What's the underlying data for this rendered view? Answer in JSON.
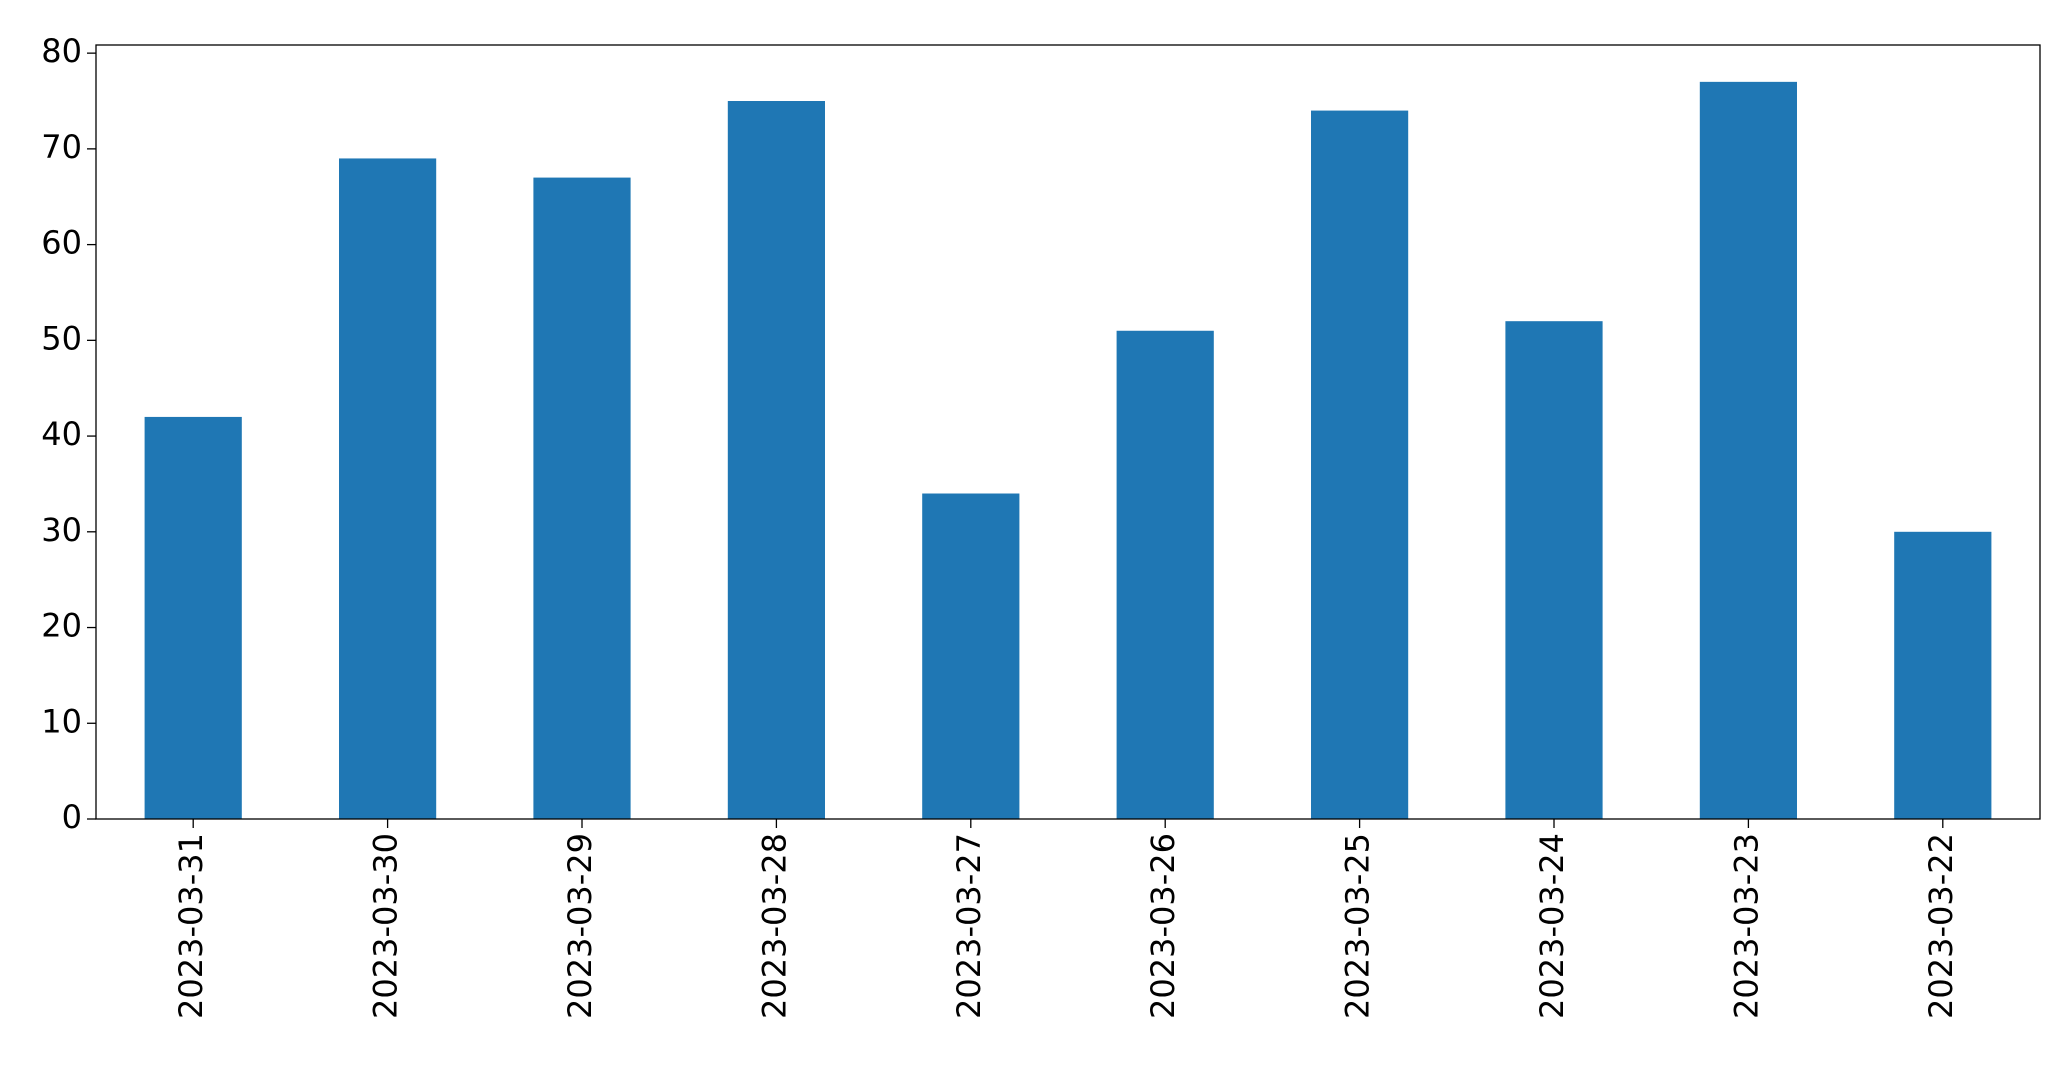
{
  "chart_data": {
    "type": "bar",
    "categories": [
      "2023-03-31",
      "2023-03-30",
      "2023-03-29",
      "2023-03-28",
      "2023-03-27",
      "2023-03-26",
      "2023-03-25",
      "2023-03-24",
      "2023-03-23",
      "2023-03-22"
    ],
    "values": [
      42,
      69,
      67,
      75,
      34,
      51,
      74,
      52,
      77,
      30
    ],
    "color": "#1f77b4",
    "ylim": [
      0,
      80.85
    ],
    "yticks": [
      0,
      10,
      20,
      30,
      40,
      50,
      60,
      70,
      80
    ],
    "grid": false
  }
}
